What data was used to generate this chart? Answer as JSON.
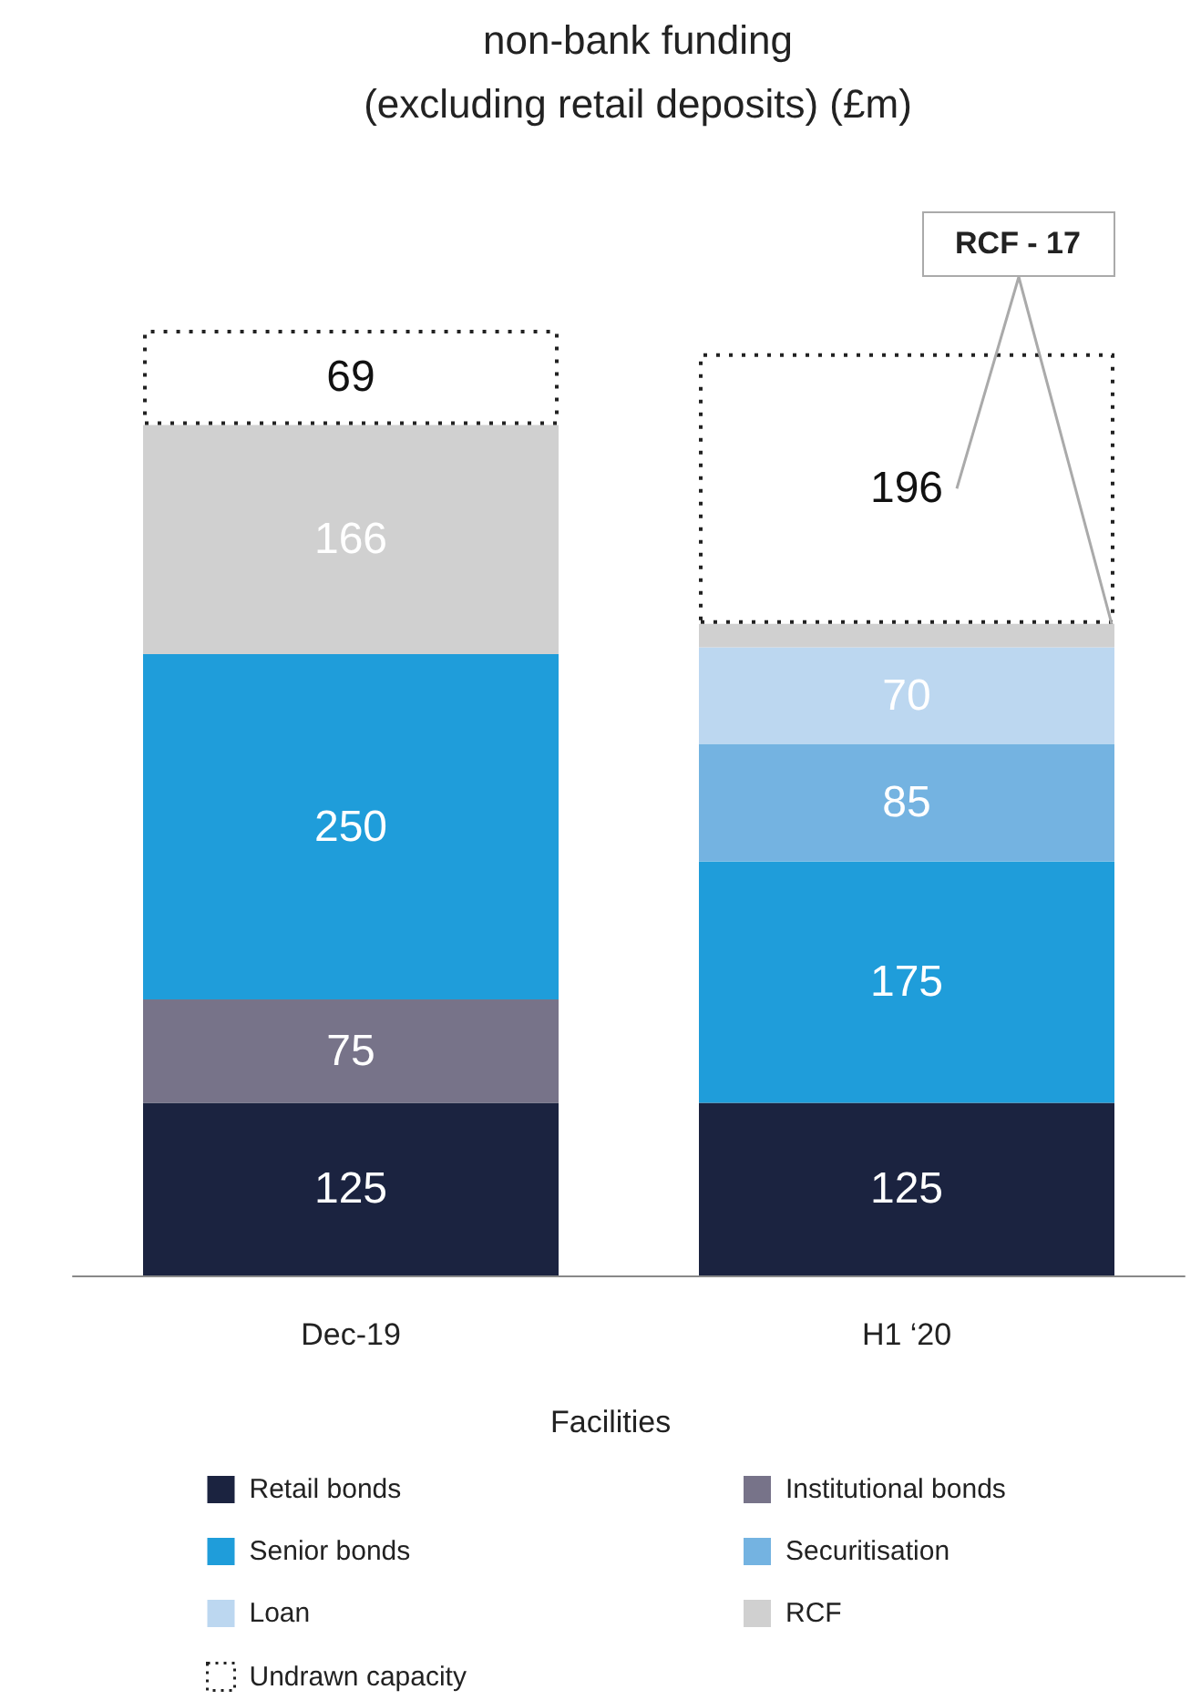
{
  "chart_data": {
    "type": "bar",
    "title": "non-bank funding",
    "subtitle": "(excluding retail deposits) (£m)",
    "legend_title": "Facilities",
    "legend": "bottom",
    "stacked": true,
    "tick_labels": "x",
    "categories": [
      "Dec-19",
      "H1 ‘20"
    ],
    "series": [
      {
        "name": "Retail bonds",
        "color": "#1b2340",
        "values": [
          125,
          125
        ],
        "value_labels": [
          "125",
          "125"
        ]
      },
      {
        "name": "Institutional bonds",
        "color": "#777389",
        "values": [
          75,
          null
        ],
        "value_labels": [
          "75",
          null
        ]
      },
      {
        "name": "Senior bonds",
        "color": "#1f9dda",
        "values": [
          250,
          175
        ],
        "value_labels": [
          "250",
          "175"
        ]
      },
      {
        "name": "Securitisation",
        "color": "#74b3e1",
        "values": [
          null,
          85
        ],
        "value_labels": [
          null,
          "85"
        ]
      },
      {
        "name": "Loan",
        "color": "#bcd7f0",
        "values": [
          null,
          70
        ],
        "value_labels": [
          null,
          "70"
        ]
      },
      {
        "name": "RCF",
        "color": "#d0d0d0",
        "values": [
          166,
          17
        ],
        "value_labels": [
          "166",
          null
        ]
      },
      {
        "name": "Undrawn capacity",
        "color": "#ffffff",
        "line_style": "dotted",
        "values": [
          69,
          196
        ],
        "value_labels": [
          "69",
          "196"
        ]
      }
    ],
    "annotations": [
      "RCF - 17"
    ]
  }
}
